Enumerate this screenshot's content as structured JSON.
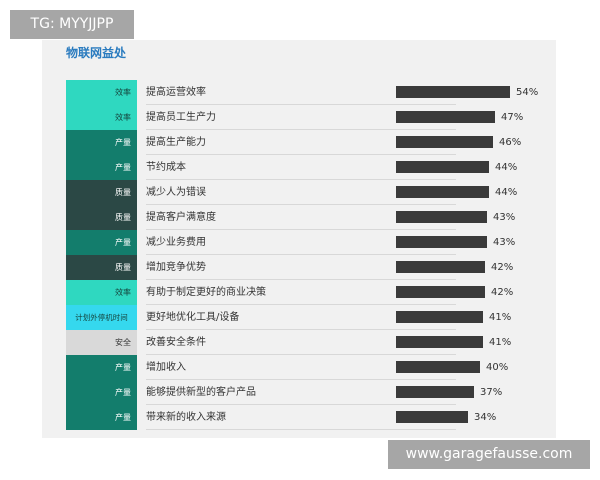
{
  "watermarks": {
    "top_left": "TG: MYYJJPP",
    "bottom_right": "www.garagefausse.com"
  },
  "chart_data": {
    "type": "bar",
    "title": "物联网益处",
    "xlim": [
      0,
      54
    ],
    "categories": [
      "提高运营效率",
      "提高员工生产力",
      "提高生产能力",
      "节约成本",
      "减少人为错误",
      "提高客户满意度",
      "减少业务费用",
      "增加竞争优势",
      "有助于制定更好的商业决策",
      "更好地优化工具/设备",
      "改善安全条件",
      "增加收入",
      "能够提供新型的客户产品",
      "带来新的收入来源"
    ],
    "values": [
      54,
      47,
      46,
      44,
      44,
      43,
      43,
      42,
      42,
      41,
      41,
      40,
      37,
      34
    ],
    "value_labels": [
      "54%",
      "47%",
      "46%",
      "44%",
      "44%",
      "43%",
      "43%",
      "42%",
      "42%",
      "41%",
      "41%",
      "40%",
      "37%",
      "34%"
    ],
    "groups": [
      "效率",
      "效率",
      "产量",
      "产量",
      "质量",
      "质量",
      "产量",
      "质量",
      "效率",
      "计划外停机时间",
      "安全",
      "产量",
      "产量",
      "产量"
    ],
    "group_colors": {
      "效率": "#2fd8c0",
      "产量": "#137d6c",
      "质量": "#2b4845",
      "计划外停机时间": "#35d8ee",
      "安全": "#d9d9d9"
    },
    "group_text_colors": {
      "效率": "#15443d",
      "产量": "#ffffff",
      "质量": "#ffffff",
      "计划外停机时间": "#15443d",
      "安全": "#333333"
    },
    "bar_color": "#3a3a3a",
    "grid": false,
    "legend": "none"
  }
}
